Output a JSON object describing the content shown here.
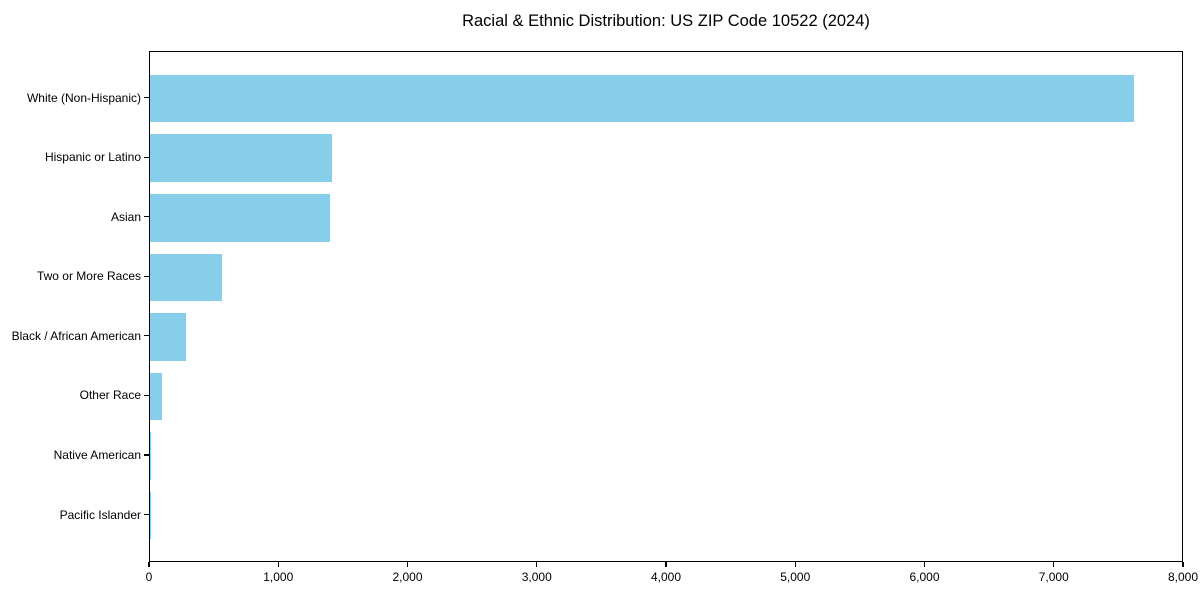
{
  "title": "Racial & Ethnic Distribution: US ZIP Code 10522 (2024)",
  "chart_data": {
    "type": "bar",
    "orientation": "horizontal",
    "title": "Racial & Ethnic Distribution: US ZIP Code 10522 (2024)",
    "categories": [
      "White (Non-Hispanic)",
      "Hispanic or Latino",
      "Asian",
      "Two or More Races",
      "Black / African American",
      "Other Race",
      "Native American",
      "Pacific Islander"
    ],
    "values": [
      7615,
      1410,
      1395,
      557,
      280,
      92,
      8,
      2
    ],
    "xlabel": "",
    "ylabel": "",
    "xlim": [
      0,
      8000
    ],
    "xticks": [
      0,
      1000,
      2000,
      3000,
      4000,
      5000,
      6000,
      7000,
      8000
    ],
    "xtick_labels": [
      "0",
      "1,000",
      "2,000",
      "3,000",
      "4,000",
      "5,000",
      "6,000",
      "7,000",
      "8,000"
    ],
    "bar_color": "#87CEEB",
    "spine_color": "#000000",
    "background_color": "#ffffff",
    "grid": false,
    "legend": null
  }
}
